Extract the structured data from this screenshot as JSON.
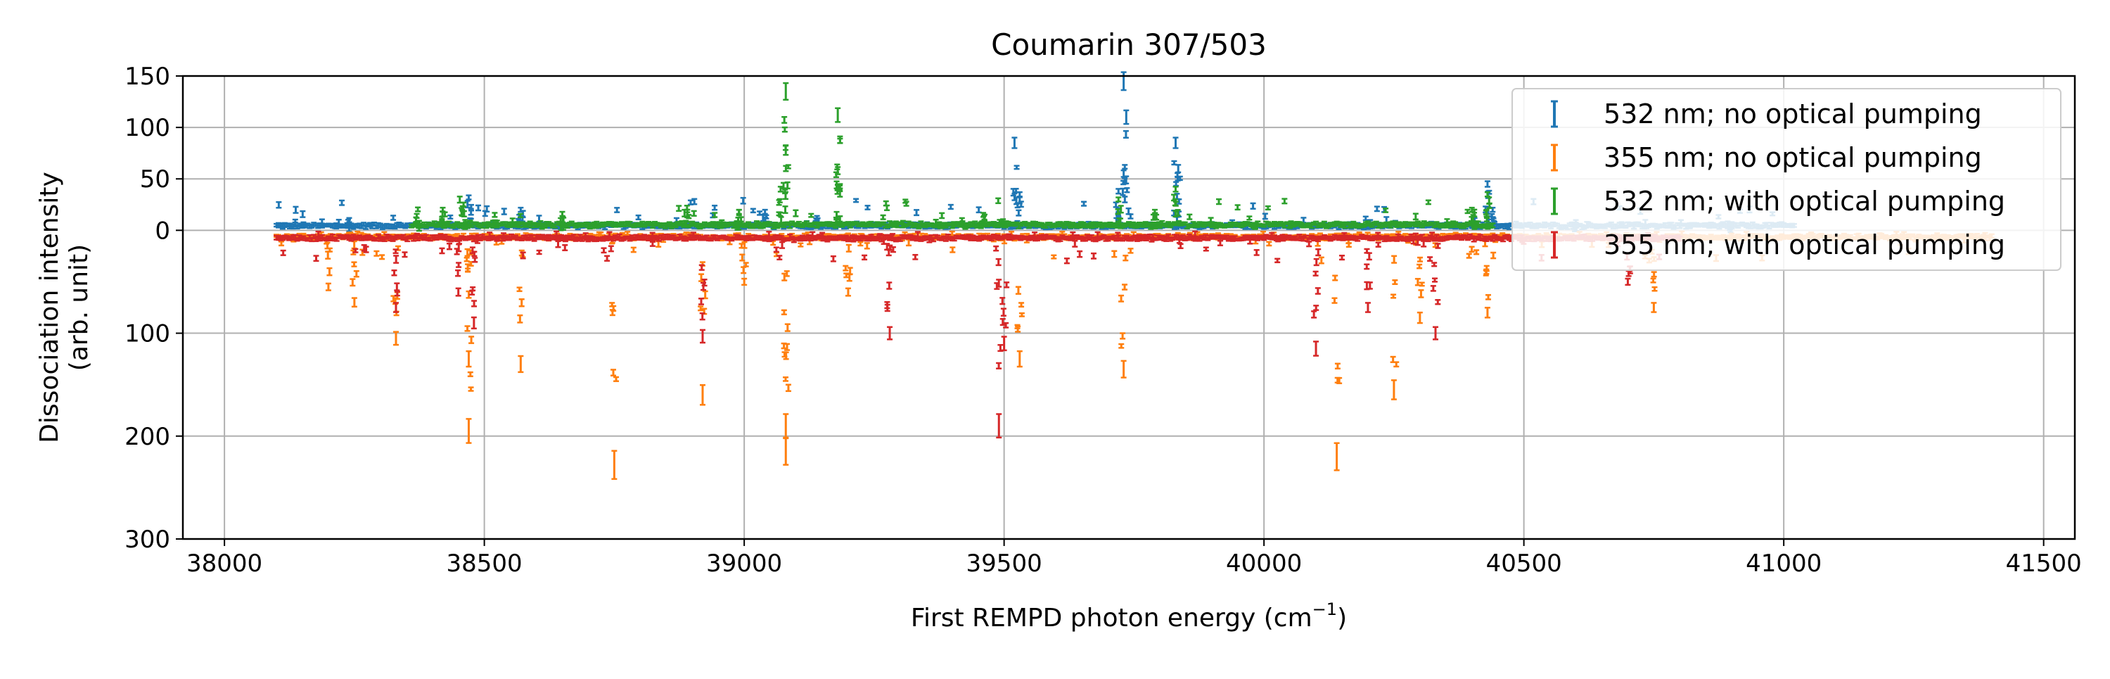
{
  "chart_data": {
    "type": "scatter",
    "title": "Coumarin 307/503",
    "xlabel": "First REMPD photon energy (cm",
    "xlabel_sup": "−1",
    "xlabel_close": ")",
    "ylabel_line1": "Dissociation intensity",
    "ylabel_line2": "(arb. unit)",
    "xlim": [
      37920,
      41560
    ],
    "ylim": [
      -300,
      150
    ],
    "x_ticks": [
      38000,
      38500,
      39000,
      39500,
      40000,
      40500,
      41000,
      41500
    ],
    "x_tick_labels": [
      "38000",
      "38500",
      "39000",
      "39500",
      "40000",
      "40500",
      "41000",
      "41500"
    ],
    "y_ticks": [
      150,
      100,
      50,
      0,
      -100,
      -200,
      -300
    ],
    "y_tick_labels": [
      "150",
      "100",
      "50",
      "0",
      "100",
      "200",
      "300"
    ],
    "grid": true,
    "legend_position": "top-right",
    "series": [
      {
        "name": "532 nm; no optical pumping",
        "color": "#1f77b4",
        "direction": "up",
        "x_range": [
          38100,
          41020
        ],
        "baseline": 3,
        "peaks": [
          [
            38240,
            10
          ],
          [
            38470,
            32
          ],
          [
            38570,
            20
          ],
          [
            39040,
            18
          ],
          [
            39140,
            12
          ],
          [
            39520,
            85
          ],
          [
            39530,
            35
          ],
          [
            39720,
            38
          ],
          [
            39730,
            145
          ],
          [
            39735,
            110
          ],
          [
            39830,
            85
          ],
          [
            39835,
            60
          ],
          [
            40430,
            45
          ],
          [
            40440,
            20
          ],
          [
            40600,
            8
          ],
          [
            40900,
            6
          ]
        ]
      },
      {
        "name": "355 nm; no optical pumping",
        "color": "#ff7f0e",
        "direction": "down",
        "x_range": [
          38100,
          41400
        ],
        "baseline": -5,
        "peaks": [
          [
            38200,
            -55
          ],
          [
            38250,
            -70
          ],
          [
            38330,
            -105
          ],
          [
            38470,
            -195
          ],
          [
            38470,
            -125
          ],
          [
            38570,
            -130
          ],
          [
            38750,
            -228
          ],
          [
            38920,
            -160
          ],
          [
            39000,
            -50
          ],
          [
            39080,
            -215
          ],
          [
            39080,
            -190
          ],
          [
            39200,
            -60
          ],
          [
            39530,
            -125
          ],
          [
            39730,
            -135
          ],
          [
            40140,
            -220
          ],
          [
            40250,
            -155
          ],
          [
            40300,
            -85
          ],
          [
            40430,
            -80
          ],
          [
            40750,
            -75
          ]
        ]
      },
      {
        "name": "532 nm; with optical pumping",
        "color": "#2ca02c",
        "direction": "up",
        "x_range": [
          38360,
          40440
        ],
        "baseline": 4,
        "peaks": [
          [
            38370,
            14
          ],
          [
            38420,
            20
          ],
          [
            38460,
            25
          ],
          [
            38520,
            15
          ],
          [
            38650,
            16
          ],
          [
            38890,
            22
          ],
          [
            38990,
            18
          ],
          [
            39070,
            40
          ],
          [
            39080,
            135
          ],
          [
            39080,
            78
          ],
          [
            39180,
            112
          ],
          [
            39180,
            58
          ],
          [
            39180,
            42
          ],
          [
            39460,
            15
          ],
          [
            39720,
            30
          ],
          [
            39790,
            18
          ],
          [
            39830,
            40
          ],
          [
            40400,
            20
          ],
          [
            40430,
            35
          ]
        ]
      },
      {
        "name": "355 nm; with optical pumping",
        "color": "#d62728",
        "direction": "down",
        "x_range": [
          38100,
          40800
        ],
        "baseline": -6,
        "peaks": [
          [
            38330,
            -75
          ],
          [
            38450,
            -60
          ],
          [
            38480,
            -90
          ],
          [
            38920,
            -103
          ],
          [
            39280,
            -100
          ],
          [
            39490,
            -190
          ],
          [
            39500,
            -110
          ],
          [
            40100,
            -115
          ],
          [
            40200,
            -75
          ],
          [
            40330,
            -100
          ],
          [
            40700,
            -50
          ]
        ]
      }
    ]
  }
}
